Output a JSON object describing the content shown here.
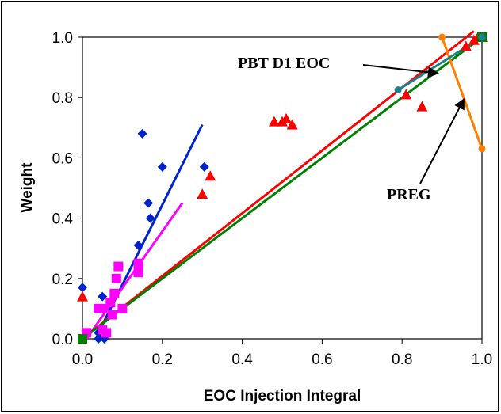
{
  "chart_data": {
    "type": "scatter",
    "xlabel": "EOC Injection Integral",
    "ylabel": "Weight",
    "xlim": [
      0,
      1
    ],
    "ylim": [
      0,
      1
    ],
    "x_ticks": [
      "0.0",
      "0.2",
      "0.4",
      "0.6",
      "0.8",
      "1.0"
    ],
    "y_ticks": [
      "0.0",
      "0.2",
      "0.4",
      "0.6",
      "0.8",
      "1.0"
    ],
    "grid": false,
    "legend": "none",
    "annotations": [
      {
        "text": "PBT D1 EOC",
        "points_to": [
          0.89,
          0.88
        ]
      },
      {
        "text": "PREG",
        "points_to": [
          0.955,
          0.795
        ]
      }
    ],
    "series": [
      {
        "color": "#0022cc",
        "marker": "diamond",
        "points": [
          [
            0.0,
            0.17
          ],
          [
            0.04,
            0.0
          ],
          [
            0.055,
            0.0
          ],
          [
            0.05,
            0.14
          ],
          [
            0.04,
            0.02
          ],
          [
            0.15,
            0.68
          ],
          [
            0.2,
            0.57
          ],
          [
            0.165,
            0.45
          ],
          [
            0.17,
            0.4
          ],
          [
            0.14,
            0.31
          ],
          [
            0.305,
            0.57
          ]
        ],
        "fit": [
          [
            0.04,
            0.02
          ],
          [
            0.3,
            0.71
          ]
        ]
      },
      {
        "color": "#ff00ff",
        "marker": "square",
        "points": [
          [
            0.01,
            0.02
          ],
          [
            0.04,
            0.1
          ],
          [
            0.05,
            0.03
          ],
          [
            0.05,
            0.1
          ],
          [
            0.06,
            0.02
          ],
          [
            0.07,
            0.12
          ],
          [
            0.075,
            0.08
          ],
          [
            0.08,
            0.15
          ],
          [
            0.085,
            0.2
          ],
          [
            0.09,
            0.24
          ],
          [
            0.1,
            0.1
          ],
          [
            0.14,
            0.22
          ],
          [
            0.14,
            0.25
          ]
        ],
        "fit": [
          [
            0.01,
            0.0
          ],
          [
            0.25,
            0.45
          ]
        ]
      },
      {
        "color": "#ff0000",
        "marker": "triangle",
        "points": [
          [
            0.0,
            0.14
          ],
          [
            0.3,
            0.48
          ],
          [
            0.32,
            0.54
          ],
          [
            0.48,
            0.72
          ],
          [
            0.5,
            0.72
          ],
          [
            0.51,
            0.73
          ],
          [
            0.525,
            0.71
          ],
          [
            0.81,
            0.81
          ],
          [
            0.85,
            0.77
          ],
          [
            0.96,
            0.97
          ],
          [
            0.98,
            0.99
          ],
          [
            0.99,
            1.0
          ],
          [
            1.0,
            1.0
          ]
        ],
        "fit": [
          [
            0.0,
            0.0
          ],
          [
            0.98,
            1.02
          ]
        ]
      },
      {
        "color": "#008000",
        "marker": "square",
        "points": [
          [
            0.0,
            0.0
          ],
          [
            1.0,
            1.0
          ]
        ],
        "fit": [
          [
            0.0,
            0.0
          ],
          [
            1.0,
            1.0
          ]
        ]
      },
      {
        "color": "#ff8000",
        "marker": "circle",
        "points": [
          [
            0.9,
            1.0
          ],
          [
            1.0,
            0.63
          ]
        ],
        "fit": [
          [
            0.9,
            1.0
          ],
          [
            1.0,
            0.63
          ]
        ]
      },
      {
        "color": "#1f7f8f",
        "marker": "circle",
        "points": [
          [
            0.79,
            0.825
          ],
          [
            1.0,
            1.0
          ]
        ],
        "fit": [
          [
            0.79,
            0.825
          ],
          [
            1.0,
            1.0
          ]
        ]
      }
    ]
  }
}
